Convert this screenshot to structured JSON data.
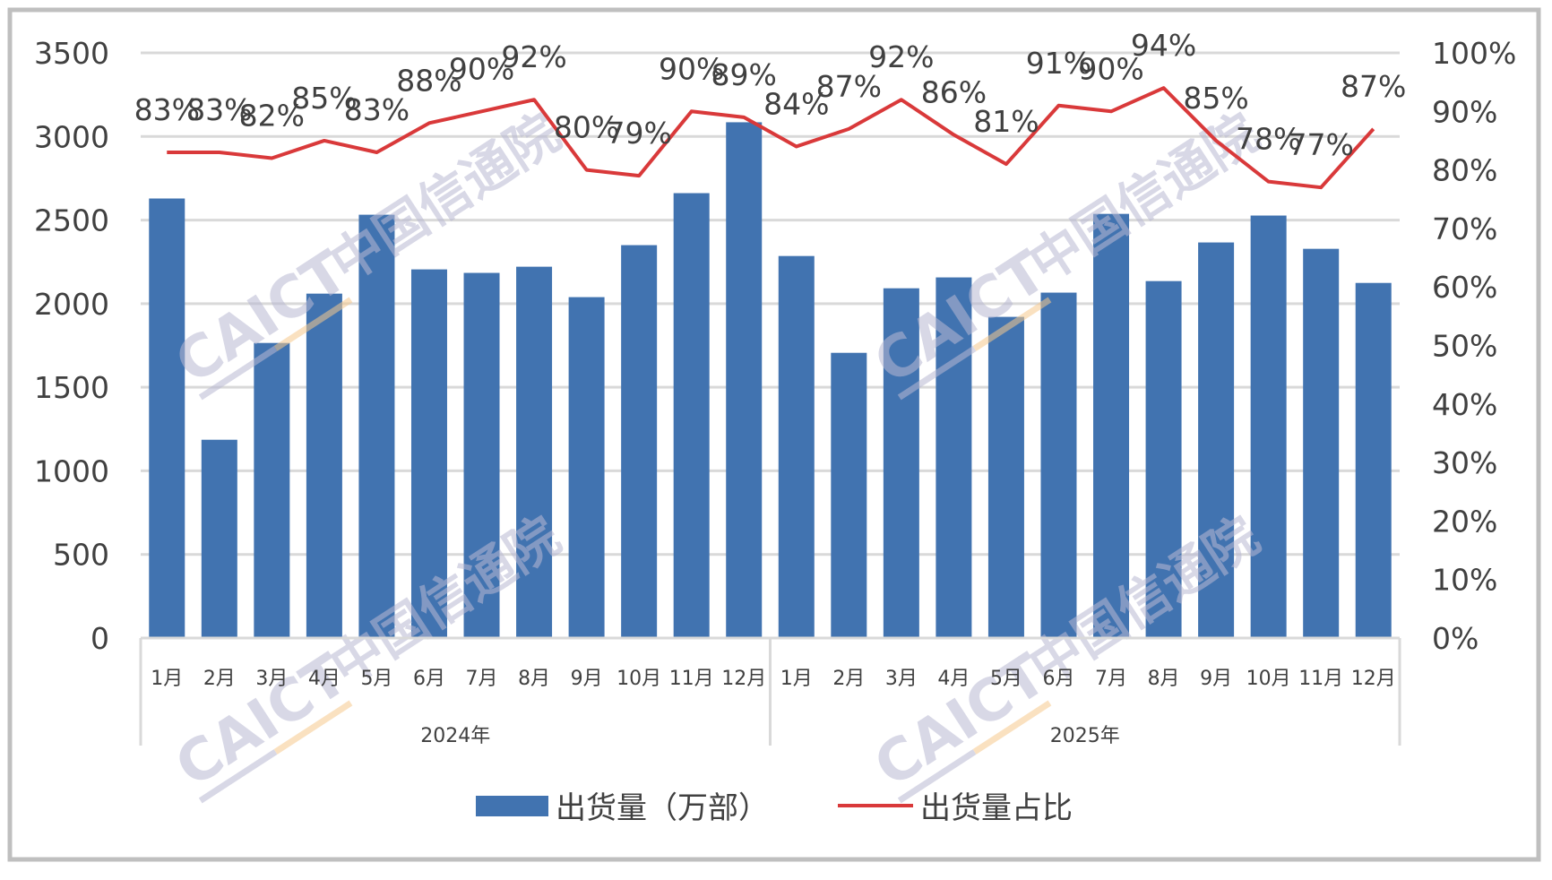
{
  "chart_data": {
    "type": "bar",
    "combo": "bar+line",
    "title": "",
    "categories": [
      "1月",
      "2月",
      "3月",
      "4月",
      "5月",
      "6月",
      "7月",
      "8月",
      "9月",
      "10月",
      "11月",
      "12月",
      "1月",
      "2月",
      "3月",
      "4月",
      "5月",
      "6月",
      "7月",
      "8月",
      "9月",
      "10月",
      "11月",
      "12月"
    ],
    "category_groups": [
      {
        "label": "2024年",
        "span": 12
      },
      {
        "label": "2025年",
        "span": 12
      }
    ],
    "series": [
      {
        "name": "出货量（万部）",
        "type": "bar",
        "axis": "left",
        "color": "#4173b0",
        "values": [
          2629,
          1186,
          1765,
          2060,
          2532,
          2205,
          2184,
          2221,
          2039,
          2350,
          2661,
          3085,
          2285,
          1706,
          2092,
          2157,
          1921,
          2066,
          2537,
          2135,
          2366,
          2527,
          2328,
          2124
        ]
      },
      {
        "name": "出货量占比",
        "type": "line",
        "axis": "right",
        "color": "#d9393a",
        "values": [
          83,
          83,
          82,
          85,
          83,
          88,
          90,
          92,
          80,
          79,
          90,
          89,
          84,
          87,
          92,
          86,
          81,
          91,
          90,
          94,
          85,
          78,
          77,
          87
        ],
        "labels": [
          "83%",
          "83%",
          "82%",
          "85%",
          "83%",
          "88%",
          "90%",
          "92%",
          "80%",
          "79%",
          "90%",
          "89%",
          "84%",
          "87%",
          "92%",
          "86%",
          "81%",
          "91%",
          "90%",
          "94%",
          "85%",
          "78%",
          "77%",
          "87%"
        ]
      }
    ],
    "xlabel": "",
    "ylabel": "",
    "ylim": [
      0,
      3500
    ],
    "yticks": [
      "0",
      "500",
      "1000",
      "1500",
      "2000",
      "2500",
      "3000",
      "3500"
    ],
    "y2lim": [
      0,
      100
    ],
    "y2ticks": [
      "0%",
      "10%",
      "20%",
      "30%",
      "40%",
      "50%",
      "60%",
      "70%",
      "80%",
      "90%",
      "100%"
    ],
    "grid": true,
    "legend_position": "bottom"
  },
  "legend": {
    "bar_label": "出货量（万部）",
    "line_label": "出货量占比"
  },
  "watermark": {
    "latin": "CAICT",
    "chinese": "中国信通院"
  },
  "colors": {
    "bar": "#4173b0",
    "line": "#d9393a",
    "grid": "#d9d9d9",
    "text": "#404040",
    "frame": "#bfbfbf"
  }
}
